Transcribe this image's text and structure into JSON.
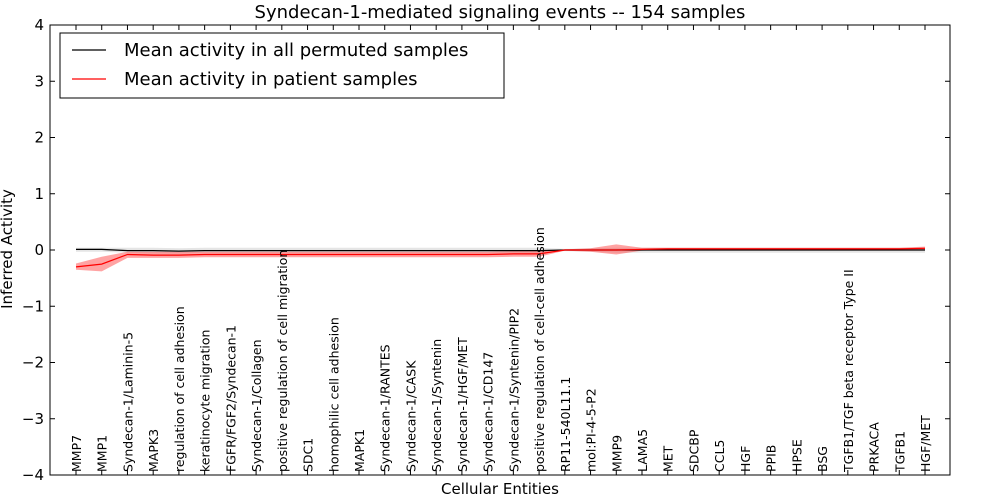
{
  "chart_data": {
    "type": "line",
    "title": "Syndecan-1-mediated signaling events -- 154 samples",
    "xlabel": "Cellular Entities",
    "ylabel": "Inferred Activity",
    "ylim": [
      -4,
      4
    ],
    "yticks": [
      -4,
      -3,
      -2,
      -1,
      0,
      1,
      2,
      3,
      4
    ],
    "ytick_labels": [
      "−4",
      "−3",
      "−2",
      "−1",
      "0",
      "1",
      "2",
      "3",
      "4"
    ],
    "categories": [
      "MMP7",
      "MMP1",
      "Syndecan-1/Laminin-5",
      "MAPK3",
      "regulation of cell adhesion",
      "keratinocyte migration",
      "FGFR/FGF2/Syndecan-1",
      "Syndecan-1/Collagen",
      "positive regulation of cell migration",
      "SDC1",
      "homophilic cell adhesion",
      "MAPK1",
      "Syndecan-1/RANTES",
      "Syndecan-1/CASK",
      "Syndecan-1/Syntenin",
      "Syndecan-1/HGF/MET",
      "Syndecan-1/CD147",
      "Syndecan-1/Syntenin/PIP2",
      "positive regulation of cell-cell adhesion",
      "RP11-540L11.1",
      "mol:PI-4-5-P2",
      "MMP9",
      "LAMA5",
      "MET",
      "SDCBP",
      "CCL5",
      "HGF",
      "PPIB",
      "HPSE",
      "BSG",
      "TGFB1/TGF beta receptor Type II",
      "PRKACA",
      "TGFB1",
      "HGF/MET"
    ],
    "legend_position": "upper-left",
    "series": [
      {
        "name": "Mean activity in all permuted samples",
        "color": "#000000",
        "values": [
          0.01,
          0.01,
          -0.01,
          -0.01,
          -0.02,
          -0.01,
          -0.01,
          -0.01,
          -0.01,
          -0.01,
          -0.01,
          -0.01,
          -0.01,
          -0.01,
          -0.01,
          -0.01,
          -0.01,
          -0.01,
          -0.01,
          0.0,
          0.0,
          0.0,
          0.0,
          0.0,
          0.0,
          0.0,
          0.0,
          0.0,
          0.0,
          0.0,
          0.0,
          0.0,
          0.0,
          0.0
        ],
        "band_lower": [
          -0.03,
          -0.03,
          -0.05,
          -0.06,
          -0.06,
          -0.05,
          -0.05,
          -0.05,
          -0.05,
          -0.05,
          -0.05,
          -0.05,
          -0.05,
          -0.05,
          -0.05,
          -0.05,
          -0.05,
          -0.05,
          -0.05,
          -0.02,
          -0.03,
          -0.05,
          -0.05,
          -0.05,
          -0.05,
          -0.05,
          -0.05,
          -0.05,
          -0.05,
          -0.05,
          -0.05,
          -0.05,
          -0.05,
          -0.05
        ],
        "band_upper": [
          0.04,
          0.04,
          0.04,
          0.04,
          0.03,
          0.04,
          0.04,
          0.04,
          0.04,
          0.04,
          0.04,
          0.04,
          0.04,
          0.04,
          0.04,
          0.04,
          0.04,
          0.04,
          0.04,
          0.02,
          0.03,
          0.04,
          0.04,
          0.04,
          0.04,
          0.04,
          0.04,
          0.04,
          0.04,
          0.04,
          0.04,
          0.04,
          0.04,
          0.04
        ]
      },
      {
        "name": "Mean activity in patient samples",
        "color": "#ff0000",
        "values": [
          -0.3,
          -0.25,
          -0.08,
          -0.09,
          -0.09,
          -0.08,
          -0.08,
          -0.08,
          -0.08,
          -0.08,
          -0.08,
          -0.08,
          -0.08,
          -0.08,
          -0.08,
          -0.08,
          -0.08,
          -0.07,
          -0.07,
          0.0,
          0.0,
          0.0,
          0.01,
          0.02,
          0.02,
          0.02,
          0.02,
          0.02,
          0.02,
          0.02,
          0.02,
          0.02,
          0.02,
          0.03
        ],
        "band_lower": [
          -0.35,
          -0.38,
          -0.14,
          -0.14,
          -0.14,
          -0.13,
          -0.13,
          -0.13,
          -0.13,
          -0.13,
          -0.13,
          -0.13,
          -0.13,
          -0.13,
          -0.13,
          -0.13,
          -0.13,
          -0.12,
          -0.12,
          -0.01,
          -0.03,
          -0.08,
          -0.01,
          0.0,
          0.0,
          0.0,
          0.0,
          0.0,
          0.0,
          0.0,
          0.0,
          0.0,
          0.0,
          0.0
        ],
        "band_upper": [
          -0.24,
          -0.12,
          -0.03,
          -0.03,
          -0.03,
          -0.03,
          -0.03,
          -0.03,
          -0.03,
          -0.03,
          -0.03,
          -0.03,
          -0.03,
          -0.03,
          -0.03,
          -0.03,
          -0.03,
          -0.02,
          -0.02,
          0.01,
          0.03,
          0.1,
          0.04,
          0.04,
          0.04,
          0.04,
          0.04,
          0.04,
          0.04,
          0.04,
          0.04,
          0.04,
          0.04,
          0.06
        ]
      }
    ]
  }
}
